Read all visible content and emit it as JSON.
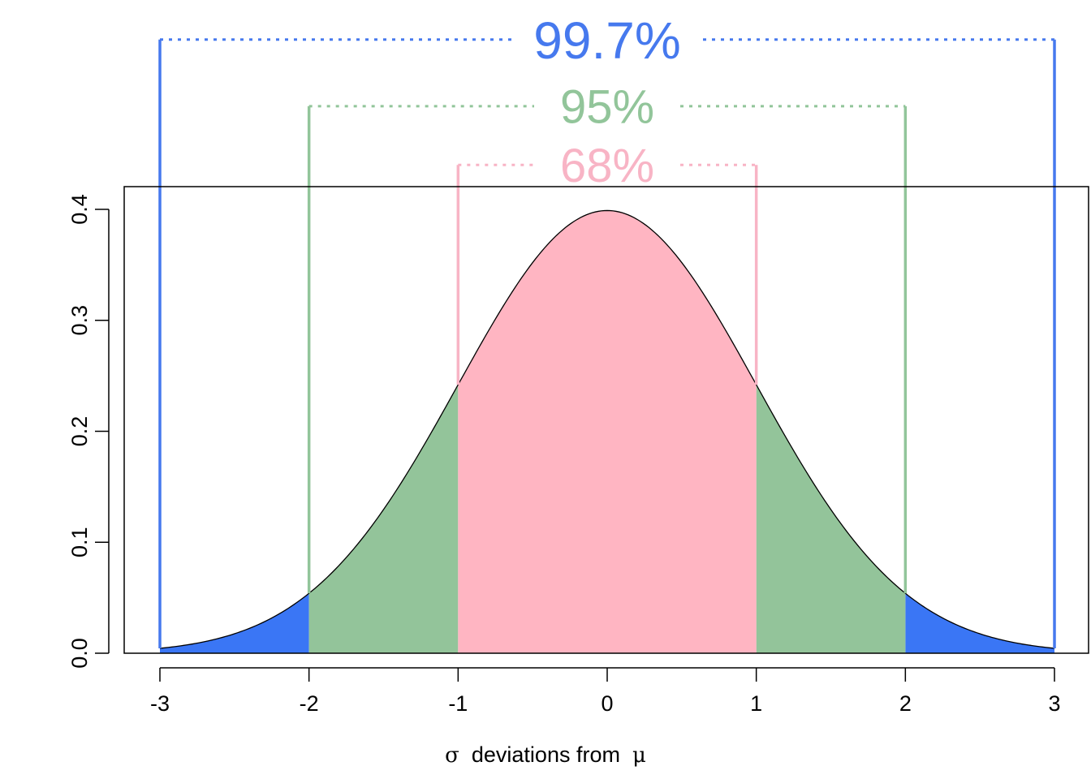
{
  "chart_data": {
    "type": "area",
    "title": "",
    "xlabel": {
      "sigma": "σ",
      "text": "deviations from",
      "mu": "μ"
    },
    "ylabel": "",
    "xlim": [
      -3.25,
      3.25
    ],
    "ylim": [
      0,
      0.42
    ],
    "x_ticks": [
      -3,
      -2,
      -1,
      0,
      1,
      2,
      3
    ],
    "x_tick_labels": [
      "-3",
      "-2",
      "-1",
      "0",
      "1",
      "2",
      "3"
    ],
    "y_ticks": [
      0,
      0.1,
      0.2,
      0.3,
      0.4
    ],
    "y_tick_labels": [
      "0.0",
      "0.1",
      "0.2",
      "0.3",
      "0.4"
    ],
    "curve": {
      "name": "Normal density",
      "mean": 0,
      "sd": 1
    },
    "regions": [
      {
        "from": -3,
        "to": -2,
        "color": "#3a76f5"
      },
      {
        "from": 2,
        "to": 3,
        "color": "#3a76f5"
      },
      {
        "from": -2,
        "to": -1,
        "color": "#93c49a"
      },
      {
        "from": 1,
        "to": 2,
        "color": "#93c49a"
      },
      {
        "from": -1,
        "to": 1,
        "color": "#ffb5c2"
      }
    ],
    "brackets": [
      {
        "label": "99.7%",
        "from": -3,
        "to": 3,
        "level": 0.553,
        "color": "#4679ee",
        "font_size": 64
      },
      {
        "label": "95%",
        "from": -2,
        "to": 2,
        "level": 0.493,
        "color": "#92c59a",
        "font_size": 58
      },
      {
        "label": "68%",
        "from": -1,
        "to": 1,
        "level": 0.44,
        "color": "#f8b4c5",
        "font_size": 58
      }
    ],
    "grid": false,
    "legend": "none"
  }
}
